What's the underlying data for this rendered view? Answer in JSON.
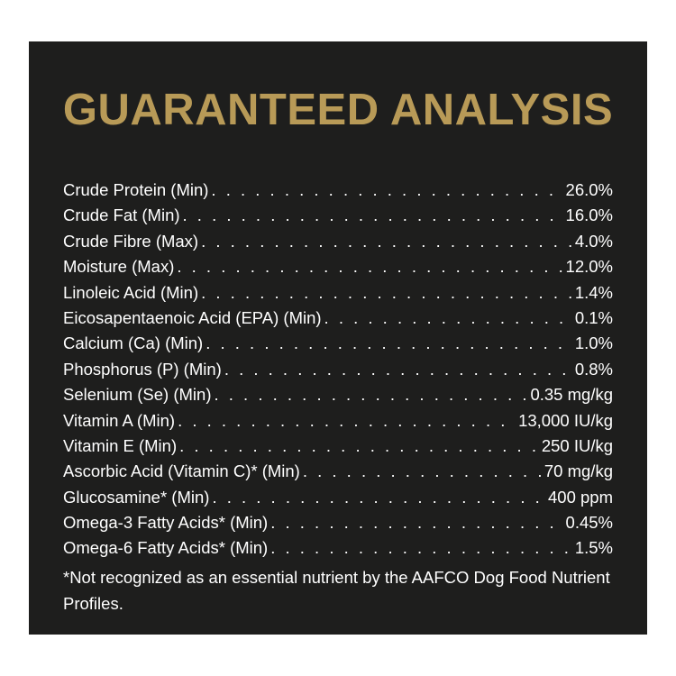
{
  "title": "GUARANTEED ANALYSIS",
  "rows": [
    {
      "label": "Crude Protein (Min)",
      "value": "26.0%"
    },
    {
      "label": "Crude Fat (Min)",
      "value": "16.0%"
    },
    {
      "label": "Crude Fibre (Max)",
      "value": "4.0%"
    },
    {
      "label": "Moisture (Max)",
      "value": "12.0%"
    },
    {
      "label": "Linoleic Acid (Min)",
      "value": "1.4%"
    },
    {
      "label": "Eicosapentaenoic Acid (EPA) (Min)",
      "value": "0.1%"
    },
    {
      "label": "Calcium (Ca) (Min)",
      "value": "1.0%"
    },
    {
      "label": "Phosphorus (P) (Min)",
      "value": "0.8%"
    },
    {
      "label": "Selenium (Se) (Min)",
      "value": "0.35 mg/kg"
    },
    {
      "label": "Vitamin A (Min)",
      "value": "13,000 IU/kg"
    },
    {
      "label": "Vitamin E (Min)",
      "value": "250 IU/kg"
    },
    {
      "label": "Ascorbic Acid (Vitamin C)* (Min)",
      "value": "70 mg/kg"
    },
    {
      "label": "Glucosamine* (Min)",
      "value": "400 ppm"
    },
    {
      "label": "Omega-3 Fatty Acids* (Min)",
      "value": "0.45%"
    },
    {
      "label": "Omega-6 Fatty Acids* (Min)",
      "value": "1.5%"
    }
  ],
  "footnote": "*Not recognized as an essential nutrient by the AAFCO Dog Food Nutrient Profiles.",
  "colors": {
    "panel": "#1e1e1d",
    "title": "#b89a57",
    "text": "#ffffff"
  }
}
